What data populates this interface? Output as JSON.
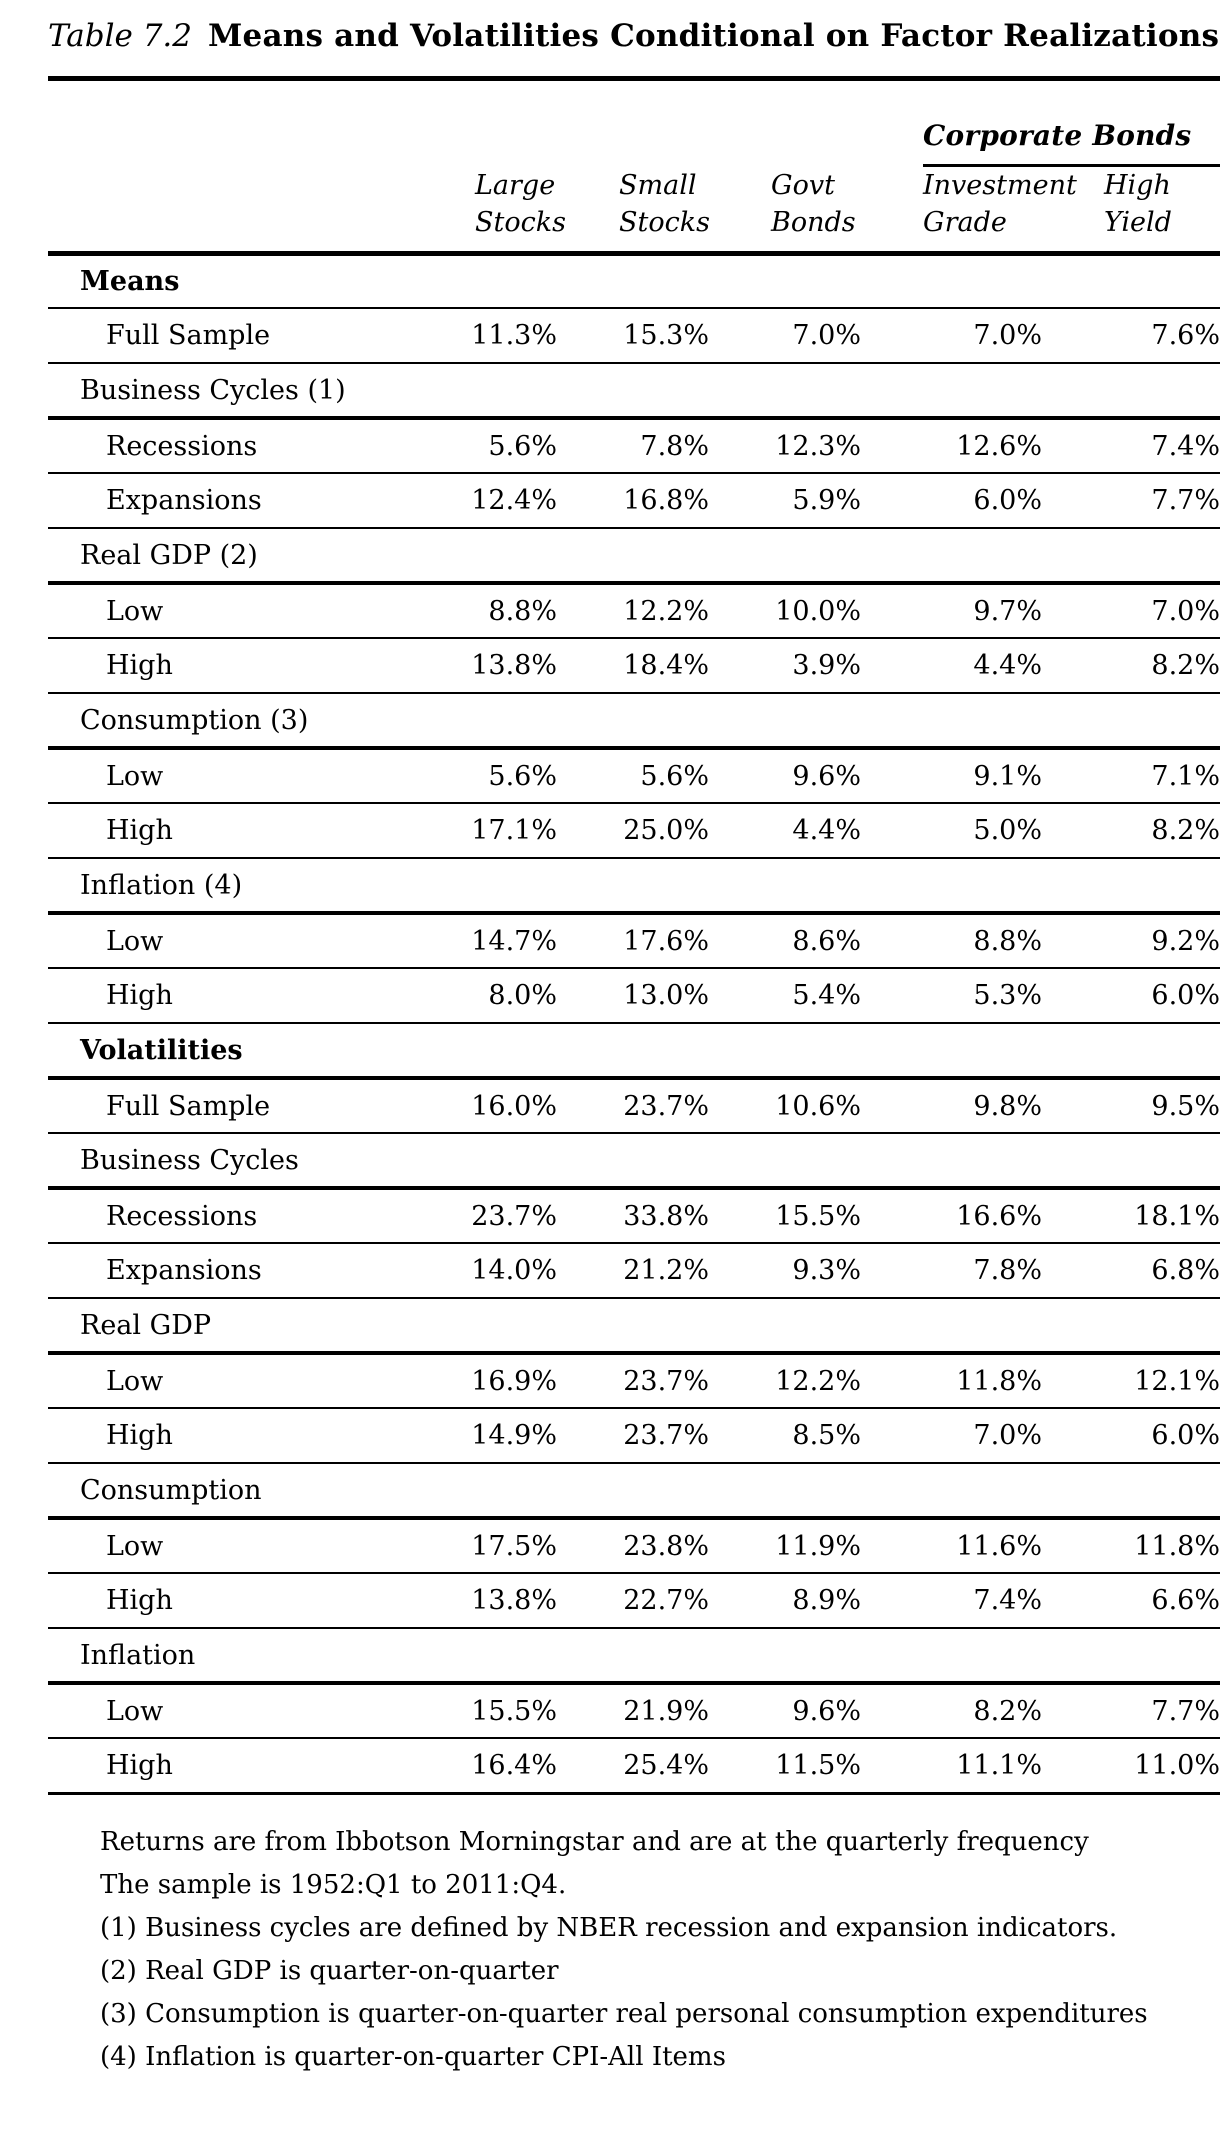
{
  "title": {
    "prefix": "Table 7.2",
    "text": "Means and Volatilities Conditional on Factor Realizations"
  },
  "header": {
    "group_label": "Corporate Bonds",
    "columns": [
      {
        "line1": "Large",
        "line2": "Stocks"
      },
      {
        "line1": "Small",
        "line2": "Stocks"
      },
      {
        "line1": "Govt",
        "line2": "Bonds"
      },
      {
        "line1": "Investment",
        "line2": "Grade"
      },
      {
        "line1": "High",
        "line2": "Yield"
      }
    ]
  },
  "table": {
    "rows": [
      {
        "type": "section",
        "label": "Means",
        "rule": "thin"
      },
      {
        "type": "data",
        "label": "Full Sample",
        "values": [
          "11.3%",
          "15.3%",
          "7.0%",
          "7.0%",
          "7.6%"
        ],
        "rule": "thin"
      },
      {
        "type": "group",
        "label": "Business Cycles (1)",
        "rule": "thick"
      },
      {
        "type": "data",
        "label": "Recessions",
        "values": [
          "5.6%",
          "7.8%",
          "12.3%",
          "12.6%",
          "7.4%"
        ],
        "rule": "thin"
      },
      {
        "type": "data",
        "label": "Expansions",
        "values": [
          "12.4%",
          "16.8%",
          "5.9%",
          "6.0%",
          "7.7%"
        ],
        "rule": "thin"
      },
      {
        "type": "group",
        "label": "Real GDP (2)",
        "rule": "thick"
      },
      {
        "type": "data",
        "label": "Low",
        "values": [
          "8.8%",
          "12.2%",
          "10.0%",
          "9.7%",
          "7.0%"
        ],
        "rule": "thin"
      },
      {
        "type": "data",
        "label": "High",
        "values": [
          "13.8%",
          "18.4%",
          "3.9%",
          "4.4%",
          "8.2%"
        ],
        "rule": "thin"
      },
      {
        "type": "group",
        "label": "Consumption (3)",
        "rule": "thick"
      },
      {
        "type": "data",
        "label": "Low",
        "values": [
          "5.6%",
          "5.6%",
          "9.6%",
          "9.1%",
          "7.1%"
        ],
        "rule": "thin"
      },
      {
        "type": "data",
        "label": "High",
        "values": [
          "17.1%",
          "25.0%",
          "4.4%",
          "5.0%",
          "8.2%"
        ],
        "rule": "thin"
      },
      {
        "type": "group",
        "label": "Inflation (4)",
        "rule": "thick"
      },
      {
        "type": "data",
        "label": "Low",
        "values": [
          "14.7%",
          "17.6%",
          "8.6%",
          "8.8%",
          "9.2%"
        ],
        "rule": "thin"
      },
      {
        "type": "data",
        "label": "High",
        "values": [
          "8.0%",
          "13.0%",
          "5.4%",
          "5.3%",
          "6.0%"
        ],
        "rule": "thin"
      },
      {
        "type": "section",
        "label": "Volatilities",
        "rule": "thick"
      },
      {
        "type": "data",
        "label": "Full Sample",
        "values": [
          "16.0%",
          "23.7%",
          "10.6%",
          "9.8%",
          "9.5%"
        ],
        "rule": "thin"
      },
      {
        "type": "group",
        "label": "Business Cycles",
        "rule": "thick"
      },
      {
        "type": "data",
        "label": "Recessions",
        "values": [
          "23.7%",
          "33.8%",
          "15.5%",
          "16.6%",
          "18.1%"
        ],
        "rule": "thin"
      },
      {
        "type": "data",
        "label": "Expansions",
        "values": [
          "14.0%",
          "21.2%",
          "9.3%",
          "7.8%",
          "6.8%"
        ],
        "rule": "thin"
      },
      {
        "type": "group",
        "label": "Real GDP",
        "rule": "thick"
      },
      {
        "type": "data",
        "label": "Low",
        "values": [
          "16.9%",
          "23.7%",
          "12.2%",
          "11.8%",
          "12.1%"
        ],
        "rule": "thin"
      },
      {
        "type": "data",
        "label": "High",
        "values": [
          "14.9%",
          "23.7%",
          "8.5%",
          "7.0%",
          "6.0%"
        ],
        "rule": "thin"
      },
      {
        "type": "group",
        "label": "Consumption",
        "rule": "thick"
      },
      {
        "type": "data",
        "label": "Low",
        "values": [
          "17.5%",
          "23.8%",
          "11.9%",
          "11.6%",
          "11.8%"
        ],
        "rule": "thin"
      },
      {
        "type": "data",
        "label": "High",
        "values": [
          "13.8%",
          "22.7%",
          "8.9%",
          "7.4%",
          "6.6%"
        ],
        "rule": "thin"
      },
      {
        "type": "group",
        "label": "Inflation",
        "rule": "thick"
      },
      {
        "type": "data",
        "label": "Low",
        "values": [
          "15.5%",
          "21.9%",
          "9.6%",
          "8.2%",
          "7.7%"
        ],
        "rule": "thin"
      },
      {
        "type": "data",
        "label": "High",
        "values": [
          "16.4%",
          "25.4%",
          "11.5%",
          "11.1%",
          "11.0%"
        ],
        "rule": "medium"
      }
    ]
  },
  "footnotes": [
    "Returns are from Ibbotson Morningstar and are at the quarterly frequency",
    "The sample is 1952:Q1 to 2011:Q4.",
    "(1) Business cycles are defined by NBER recession and expansion indicators.",
    "(2) Real GDP is quarter-on-quarter",
    "(3) Consumption is quarter-on-quarter real personal consumption expenditures",
    "(4) Inflation is quarter-on-quarter CPI-All Items"
  ],
  "colors": {
    "text": "#000000",
    "rule": "#000000",
    "background": "#ffffff"
  }
}
